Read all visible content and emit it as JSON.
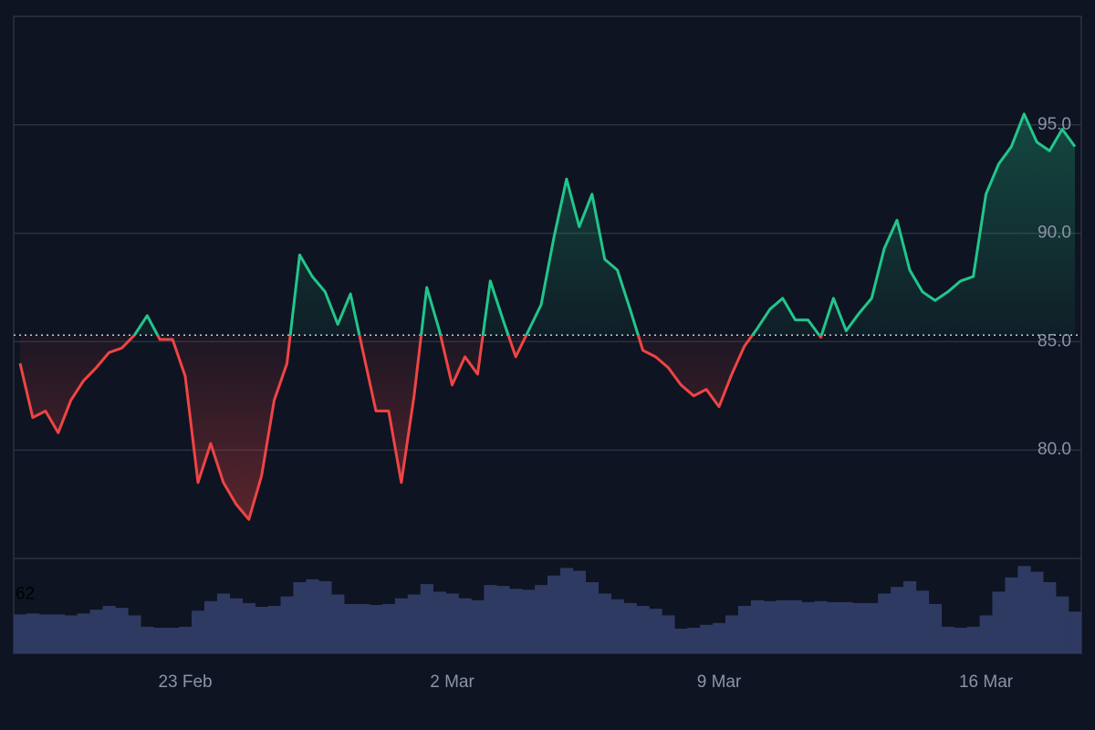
{
  "chart_data": {
    "type": "baseline",
    "categories": [
      null,
      null,
      null,
      null,
      null,
      null,
      null,
      null,
      null,
      null,
      null,
      null,
      null,
      "23 Feb",
      null,
      null,
      null,
      null,
      null,
      null,
      null,
      null,
      null,
      null,
      null,
      null,
      null,
      null,
      null,
      null,
      null,
      null,
      null,
      null,
      "2 Mar",
      null,
      null,
      null,
      null,
      null,
      null,
      null,
      null,
      null,
      null,
      null,
      null,
      null,
      null,
      null,
      null,
      null,
      null,
      null,
      null,
      "9 Mar",
      null,
      null,
      null,
      null,
      null,
      null,
      null,
      null,
      null,
      null,
      null,
      null,
      null,
      null,
      null,
      null,
      null,
      null,
      null,
      null,
      "16 Mar",
      null,
      null,
      null,
      null,
      null,
      null,
      null
    ],
    "values": [
      84,
      81.5,
      81.8,
      80.8,
      82.3,
      83.2,
      83.8,
      84.5,
      84.7,
      85.3,
      86.2,
      85.1,
      85.1,
      83.4,
      78.5,
      80.3,
      78.5,
      77.5,
      76.8,
      78.8,
      82.3,
      84.0,
      89.0,
      88.0,
      87.3,
      85.8,
      87.2,
      84.5,
      81.8,
      81.8,
      78.5,
      82.5,
      87.5,
      85.5,
      83.0,
      84.3,
      83.5,
      87.8,
      86.0,
      84.3,
      85.5,
      86.7,
      89.8,
      92.5,
      90.3,
      91.8,
      88.8,
      88.3,
      86.5,
      84.6,
      84.3,
      83.8,
      83.0,
      82.5,
      82.8,
      82.0,
      83.5,
      84.8,
      85.6,
      86.5,
      87.0,
      86.0,
      86.0,
      85.2,
      87.0,
      85.5,
      86.3,
      87.0,
      89.3,
      90.6,
      88.3,
      87.3,
      86.9,
      87.3,
      87.8,
      88.0,
      91.8,
      93.2,
      94.0,
      95.5,
      94.2,
      93.8,
      94.8,
      94.0
    ],
    "baseline": 85.3,
    "top_color": "#22c58b",
    "bottom_color": "#ef4444",
    "ylim": [
      75,
      100
    ],
    "yticks": [
      {
        "value": 80,
        "label": "80.0"
      },
      {
        "value": 85,
        "label": "85.0"
      },
      {
        "value": 90,
        "label": "90.0"
      },
      {
        "value": 95,
        "label": "95.0"
      }
    ],
    "grid": true,
    "volume": {
      "values": [
        41,
        42,
        41,
        41,
        40,
        42,
        46,
        50,
        48,
        40,
        28,
        27,
        27,
        28,
        45,
        55,
        63,
        58,
        53,
        49,
        50,
        60,
        75,
        78,
        76,
        62,
        52,
        52,
        51,
        52,
        58,
        62,
        73,
        65,
        63,
        58,
        56,
        72,
        71,
        68,
        67,
        72,
        82,
        90,
        87,
        75,
        63,
        57,
        53,
        50,
        47,
        40,
        26,
        27,
        30,
        32,
        40,
        50,
        56,
        55,
        56,
        56,
        54,
        55,
        54,
        54,
        53,
        53,
        63,
        70,
        76,
        66,
        52,
        28,
        27,
        28,
        40,
        65,
        80,
        92,
        86,
        75,
        60,
        44
      ],
      "color": "#2f3a63",
      "ylim": [
        0,
        100
      ],
      "yticks": [
        62
      ]
    }
  }
}
